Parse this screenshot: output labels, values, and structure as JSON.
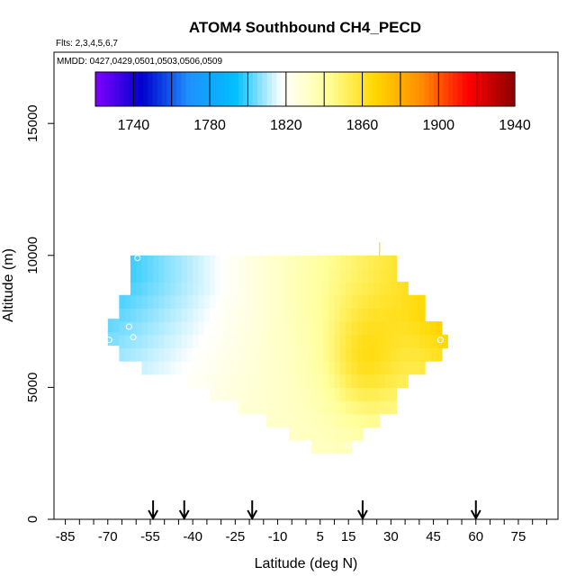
{
  "chart_data": {
    "type": "heatmap",
    "title": "ATOM4 Southbound CH4_PECD",
    "flights_text": "Flts: 2,3,4,5,6,7",
    "mmdd_text": "MMDD: 0427,0429,0501,0503,0506,0509",
    "xlabel": "Latitude (deg N)",
    "ylabel": "Altitude (m)",
    "xlim": [
      -89,
      89
    ],
    "ylim": [
      0,
      17700
    ],
    "x_ticks": [
      -85,
      -70,
      -55,
      -40,
      -25,
      -10,
      5,
      15,
      30,
      45,
      60,
      75
    ],
    "y_ticks": [
      0,
      5000,
      10000,
      15000
    ],
    "grid": false,
    "colorbar": {
      "placement": "top",
      "min": 1720,
      "max": 1940,
      "labels": [
        1740,
        1780,
        1820,
        1860,
        1900,
        1940
      ],
      "colors": [
        "#7f00ff",
        "#0000cd",
        "#1e90ff",
        "#00bfff",
        "#ffffff",
        "#ffff99",
        "#ffd700",
        "#ff8c00",
        "#ff0000",
        "#8b0000"
      ]
    },
    "arrows_lat": [
      -54,
      -43,
      -19,
      20,
      60
    ],
    "field": {
      "lat_range": [
        -70,
        48
      ],
      "alt_range": [
        2500,
        10000
      ],
      "south_value": 1795,
      "north_value": 1870,
      "low_value": 1830
    },
    "column_altitude_extent": [
      {
        "lat": -70,
        "bottom": 6600,
        "top": 7400
      },
      {
        "lat": -66,
        "bottom": 6000,
        "top": 8500
      },
      {
        "lat": -62,
        "bottom": 6000,
        "top": 10000
      },
      {
        "lat": -58,
        "bottom": 5500,
        "top": 10000
      },
      {
        "lat": -50,
        "bottom": 5500,
        "top": 10000
      },
      {
        "lat": -42,
        "bottom": 5000,
        "top": 10000
      },
      {
        "lat": -34,
        "bottom": 4500,
        "top": 10000
      },
      {
        "lat": -24,
        "bottom": 4000,
        "top": 10000
      },
      {
        "lat": -14,
        "bottom": 3500,
        "top": 10000
      },
      {
        "lat": -6,
        "bottom": 3000,
        "top": 10000
      },
      {
        "lat": 2,
        "bottom": 2500,
        "top": 10000
      },
      {
        "lat": 10,
        "bottom": 2500,
        "top": 10000
      },
      {
        "lat": 16,
        "bottom": 3000,
        "top": 10000
      },
      {
        "lat": 20,
        "bottom": 3500,
        "top": 10000
      },
      {
        "lat": 26,
        "bottom": 4000,
        "top": 10000
      },
      {
        "lat": 32,
        "bottom": 5000,
        "top": 9000
      },
      {
        "lat": 36,
        "bottom": 5500,
        "top": 8500
      },
      {
        "lat": 42,
        "bottom": 6000,
        "top": 7500
      },
      {
        "lat": 48,
        "bottom": 6500,
        "top": 7000
      }
    ]
  }
}
